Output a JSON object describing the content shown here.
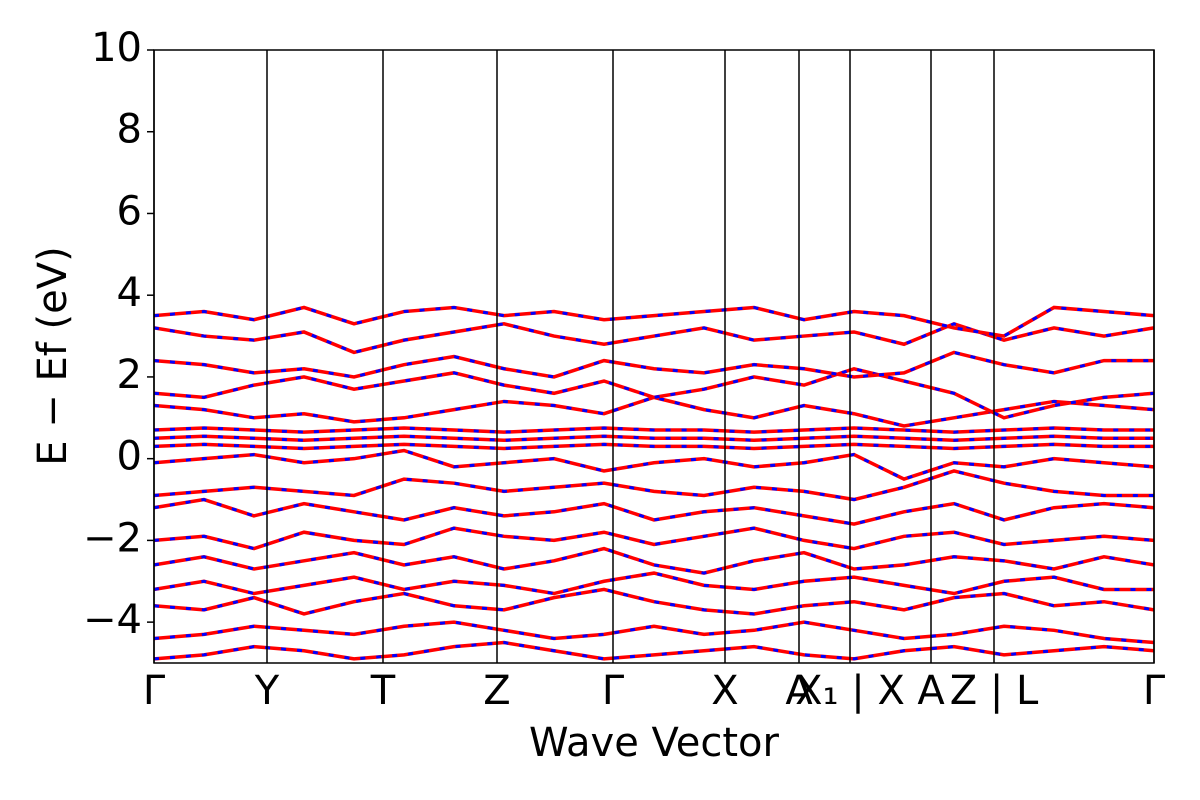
{
  "chart_data": {
    "type": "line",
    "xlabel": "Wave Vector",
    "ylabel": "E − Ef (eV)",
    "xlim": [
      0,
      1
    ],
    "ylim": [
      -5,
      10
    ],
    "yticks": [
      {
        "value": -4,
        "label": "−4"
      },
      {
        "value": -2,
        "label": "−2"
      },
      0,
      2,
      4,
      6,
      8,
      10
    ],
    "xticks": [
      {
        "value": 0,
        "label": "Γ"
      },
      {
        "value": 0.113,
        "label": "Y"
      },
      {
        "value": 0.229,
        "label": "T"
      },
      {
        "value": 0.343,
        "label": "Z"
      },
      {
        "value": 0.459,
        "label": "Γ"
      },
      {
        "value": 0.571,
        "label": "X"
      },
      {
        "value": 0.645,
        "label": "A"
      },
      {
        "value": 0.696,
        "label": "X₁ | X"
      },
      {
        "value": 0.777,
        "label": "A"
      },
      {
        "value": 0.84,
        "label": "Z | L"
      },
      {
        "value": 1.0,
        "label": "Γ"
      }
    ],
    "color": "#ff0000",
    "dash_color": "#0000ff",
    "x": [
      0,
      0.05,
      0.1,
      0.15,
      0.2,
      0.25,
      0.3,
      0.35,
      0.4,
      0.45,
      0.5,
      0.55,
      0.6,
      0.65,
      0.7,
      0.75,
      0.8,
      0.85,
      0.9,
      0.95,
      1.0
    ],
    "series": [
      {
        "values": [
          -4.9,
          -4.8,
          -4.6,
          -4.7,
          -4.9,
          -4.8,
          -4.6,
          -4.5,
          -4.7,
          -4.9,
          -4.8,
          -4.7,
          -4.6,
          -4.8,
          -4.9,
          -4.7,
          -4.6,
          -4.8,
          -4.7,
          -4.6,
          -4.7
        ]
      },
      {
        "values": [
          -4.4,
          -4.3,
          -4.1,
          -4.2,
          -4.3,
          -4.1,
          -4.0,
          -4.2,
          -4.4,
          -4.3,
          -4.1,
          -4.3,
          -4.2,
          -4.0,
          -4.2,
          -4.4,
          -4.3,
          -4.1,
          -4.2,
          -4.4,
          -4.5
        ]
      },
      {
        "values": [
          -3.6,
          -3.7,
          -3.4,
          -3.8,
          -3.5,
          -3.3,
          -3.6,
          -3.7,
          -3.4,
          -3.2,
          -3.5,
          -3.7,
          -3.8,
          -3.6,
          -3.5,
          -3.7,
          -3.4,
          -3.3,
          -3.6,
          -3.5,
          -3.7
        ]
      },
      {
        "values": [
          -3.2,
          -3.0,
          -3.3,
          -3.1,
          -2.9,
          -3.2,
          -3.0,
          -3.1,
          -3.3,
          -3.0,
          -2.8,
          -3.1,
          -3.2,
          -3.0,
          -2.9,
          -3.1,
          -3.3,
          -3.0,
          -2.9,
          -3.2,
          -3.2
        ]
      },
      {
        "values": [
          -2.6,
          -2.4,
          -2.7,
          -2.5,
          -2.3,
          -2.6,
          -2.4,
          -2.7,
          -2.5,
          -2.2,
          -2.6,
          -2.8,
          -2.5,
          -2.3,
          -2.7,
          -2.6,
          -2.4,
          -2.5,
          -2.7,
          -2.4,
          -2.6
        ]
      },
      {
        "values": [
          -2.0,
          -1.9,
          -2.2,
          -1.8,
          -2.0,
          -2.1,
          -1.7,
          -1.9,
          -2.0,
          -1.8,
          -2.1,
          -1.9,
          -1.7,
          -2.0,
          -2.2,
          -1.9,
          -1.8,
          -2.1,
          -2.0,
          -1.9,
          -2.0
        ]
      },
      {
        "values": [
          -1.2,
          -1.0,
          -1.4,
          -1.1,
          -1.3,
          -1.5,
          -1.2,
          -1.4,
          -1.3,
          -1.1,
          -1.5,
          -1.3,
          -1.2,
          -1.4,
          -1.6,
          -1.3,
          -1.1,
          -1.5,
          -1.2,
          -1.1,
          -1.2
        ]
      },
      {
        "values": [
          -0.9,
          -0.8,
          -0.7,
          -0.8,
          -0.9,
          -0.5,
          -0.6,
          -0.8,
          -0.7,
          -0.6,
          -0.8,
          -0.9,
          -0.7,
          -0.8,
          -1.0,
          -0.7,
          -0.3,
          -0.6,
          -0.8,
          -0.9,
          -0.9
        ]
      },
      {
        "values": [
          -0.1,
          0.0,
          0.1,
          -0.1,
          0.0,
          0.2,
          -0.2,
          -0.1,
          0.0,
          -0.3,
          -0.1,
          0.0,
          -0.2,
          -0.1,
          0.1,
          -0.5,
          -0.1,
          -0.2,
          0.0,
          -0.1,
          -0.2
        ]
      },
      {
        "values": [
          0.3,
          0.35,
          0.3,
          0.25,
          0.3,
          0.35,
          0.3,
          0.25,
          0.3,
          0.35,
          0.3,
          0.3,
          0.25,
          0.3,
          0.35,
          0.3,
          0.25,
          0.3,
          0.35,
          0.3,
          0.3
        ]
      },
      {
        "values": [
          0.5,
          0.55,
          0.5,
          0.45,
          0.5,
          0.55,
          0.5,
          0.45,
          0.5,
          0.55,
          0.5,
          0.5,
          0.45,
          0.5,
          0.55,
          0.5,
          0.45,
          0.5,
          0.55,
          0.5,
          0.5
        ]
      },
      {
        "values": [
          0.7,
          0.75,
          0.7,
          0.65,
          0.7,
          0.75,
          0.7,
          0.65,
          0.7,
          0.75,
          0.7,
          0.7,
          0.65,
          0.7,
          0.75,
          0.7,
          0.65,
          0.7,
          0.75,
          0.7,
          0.7
        ]
      },
      {
        "values": [
          1.3,
          1.2,
          1.0,
          1.1,
          0.9,
          1.0,
          1.2,
          1.4,
          1.3,
          1.1,
          1.5,
          1.2,
          1.0,
          1.3,
          1.1,
          0.8,
          1.0,
          1.2,
          1.4,
          1.3,
          1.2
        ]
      },
      {
        "values": [
          1.6,
          1.5,
          1.8,
          2.0,
          1.7,
          1.9,
          2.1,
          1.8,
          1.6,
          1.9,
          1.5,
          1.7,
          2.0,
          1.8,
          2.2,
          1.9,
          1.6,
          1.0,
          1.3,
          1.5,
          1.6
        ]
      },
      {
        "values": [
          2.4,
          2.3,
          2.1,
          2.2,
          2.0,
          2.3,
          2.5,
          2.2,
          2.0,
          2.4,
          2.2,
          2.1,
          2.3,
          2.2,
          2.0,
          2.1,
          2.6,
          2.3,
          2.1,
          2.4,
          2.4
        ]
      },
      {
        "values": [
          3.2,
          3.0,
          2.9,
          3.1,
          2.6,
          2.9,
          3.1,
          3.3,
          3.0,
          2.8,
          3.0,
          3.2,
          2.9,
          3.0,
          3.1,
          2.8,
          3.3,
          2.9,
          3.2,
          3.0,
          3.2
        ]
      },
      {
        "values": [
          3.5,
          3.6,
          3.4,
          3.7,
          3.3,
          3.6,
          3.7,
          3.5,
          3.6,
          3.4,
          3.5,
          3.6,
          3.7,
          3.4,
          3.6,
          3.5,
          3.2,
          3.0,
          3.7,
          3.6,
          3.5
        ]
      }
    ]
  }
}
